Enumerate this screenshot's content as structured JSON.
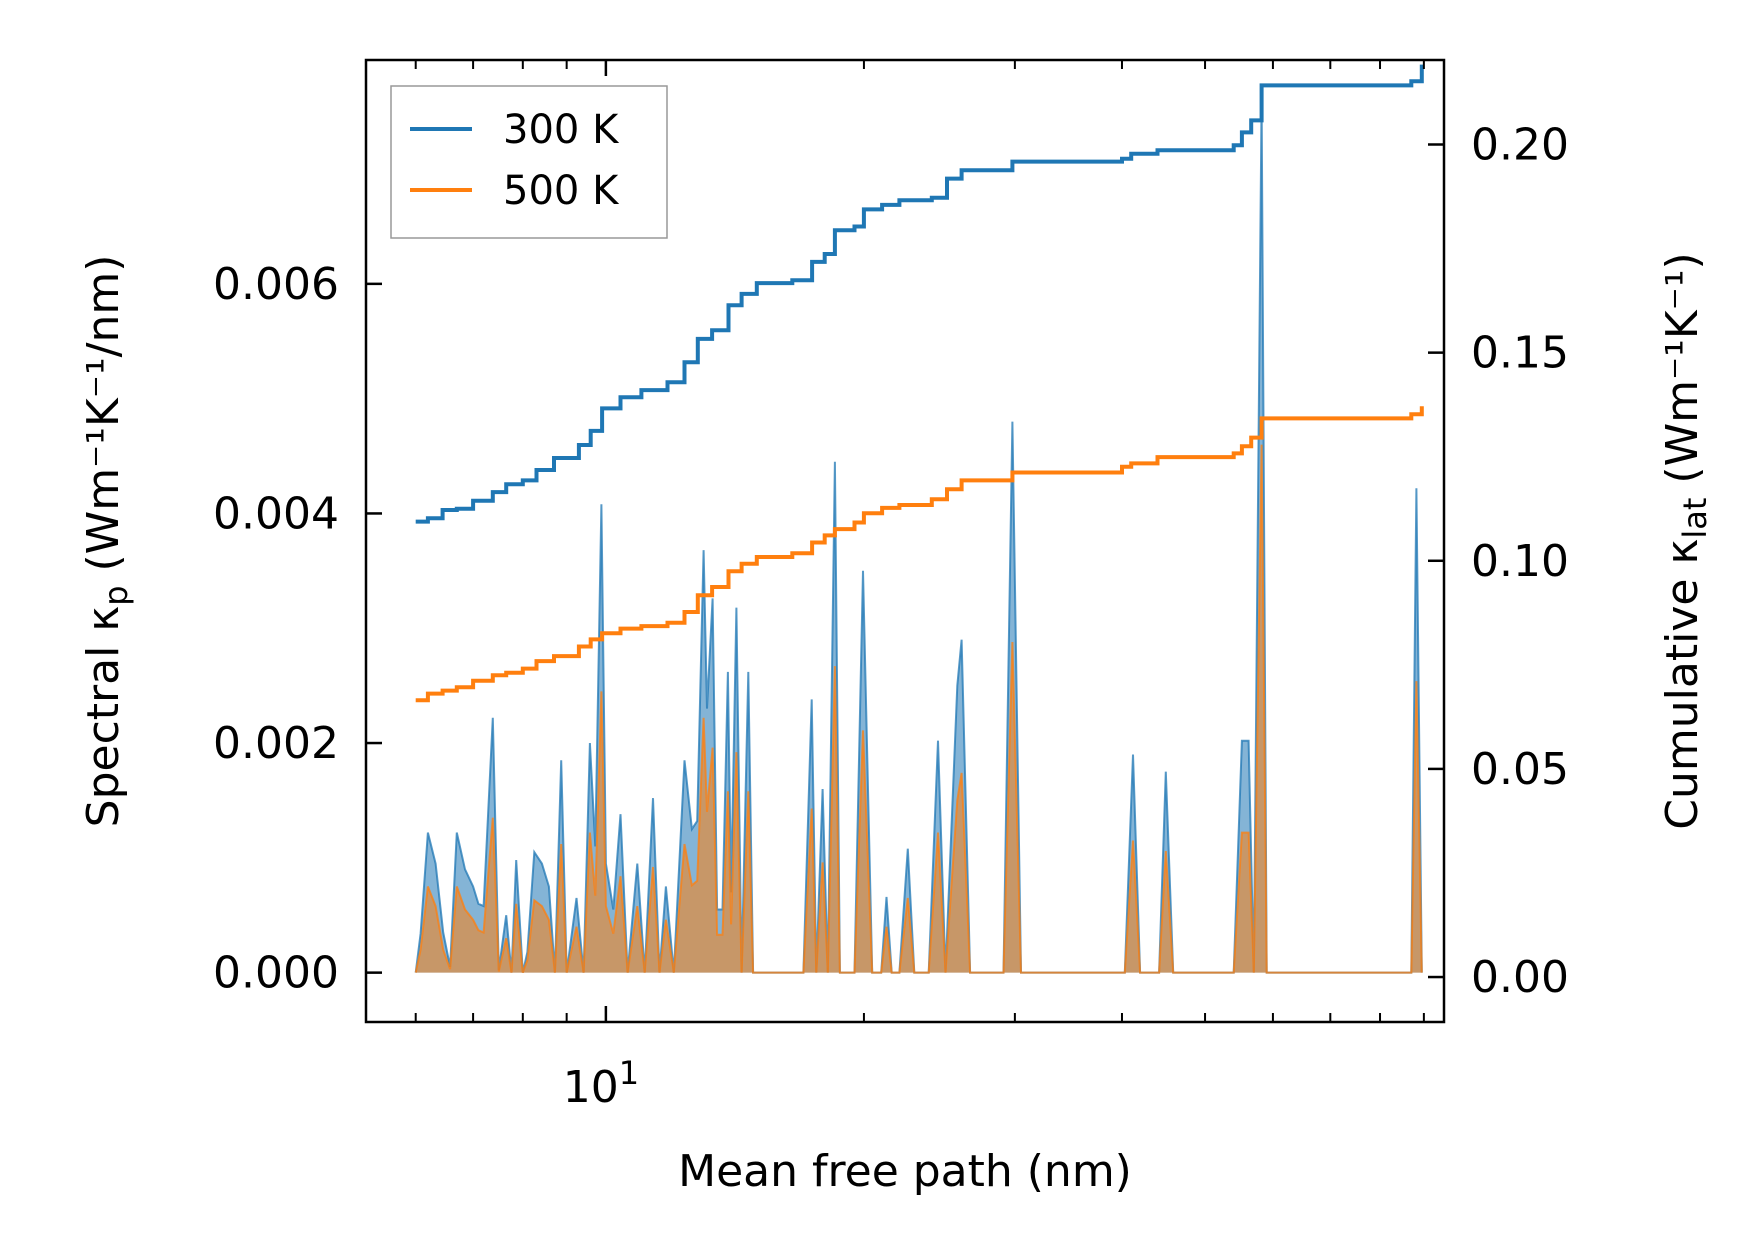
{
  "chart_data": {
    "type": "line",
    "xscale": "log",
    "xlabel": "Mean free path (nm)",
    "xlim": [
      5.25,
      95
    ],
    "x_major_ticks": [
      10
    ],
    "x_major_tick_labels": [
      "10",
      "1"
    ],
    "x_minor_ticks": [
      6,
      7,
      8,
      9,
      20,
      30,
      40,
      50,
      60,
      70,
      80,
      90
    ],
    "ylabel_left": {
      "prefix": "Spectral κ",
      "sub": "p",
      "suffix": " (Wm⁻¹K⁻¹/nm)"
    },
    "ylabel_right": {
      "prefix": "Cumulative κ",
      "sub": "lat",
      "suffix": " (Wm⁻¹K⁻¹)"
    },
    "ylim_left": [
      -0.00043,
      0.00795
    ],
    "ylim_right": [
      -0.0108,
      0.2203
    ],
    "yticks_left": [
      0.0,
      0.002,
      0.004,
      0.006
    ],
    "yticks_left_labels": [
      "0.000",
      "0.002",
      "0.004",
      "0.006"
    ],
    "yticks_right": [
      0.0,
      0.05,
      0.1,
      0.15,
      0.2
    ],
    "yticks_right_labels": [
      "0.00",
      "0.05",
      "0.10",
      "0.15",
      "0.20"
    ],
    "legend": {
      "position": "top-left",
      "entries": [
        "300 K",
        "500 K"
      ]
    },
    "colors": {
      "s300": "#1f77b4",
      "s500": "#ff7f0e",
      "fill300": "#1f77b4",
      "fill500": "#ff7f0e",
      "axis": "#000000"
    },
    "spectral": {
      "s300": [
        [
          6.0,
          0.0
        ],
        [
          6.08,
          0.00034
        ],
        [
          6.2,
          0.00122
        ],
        [
          6.33,
          0.00095
        ],
        [
          6.46,
          0.00035
        ],
        [
          6.58,
          5e-05
        ],
        [
          6.7,
          0.00122
        ],
        [
          6.85,
          0.0009
        ],
        [
          7.0,
          0.00075
        ],
        [
          7.1,
          0.0006
        ],
        [
          7.2,
          0.00058
        ],
        [
          7.38,
          0.00222
        ],
        [
          7.5,
          2e-05
        ],
        [
          7.65,
          0.0005
        ],
        [
          7.76,
          0.0
        ],
        [
          7.86,
          0.00098
        ],
        [
          8.0,
          0.0
        ],
        [
          8.1,
          0.00018
        ],
        [
          8.25,
          0.00105
        ],
        [
          8.42,
          0.00095
        ],
        [
          8.58,
          0.00075
        ],
        [
          8.72,
          0.0
        ],
        [
          8.87,
          0.00185
        ],
        [
          9.0,
          0.0
        ],
        [
          9.24,
          0.00065
        ],
        [
          9.42,
          0.0
        ],
        [
          9.58,
          0.002
        ],
        [
          9.72,
          0.0011
        ],
        [
          9.88,
          0.00408
        ],
        [
          10.0,
          0.00095
        ],
        [
          10.2,
          0.00055
        ],
        [
          10.4,
          0.00138
        ],
        [
          10.6,
          0.0
        ],
        [
          10.88,
          0.00095
        ],
        [
          11.1,
          0.0
        ],
        [
          11.35,
          0.00152
        ],
        [
          11.55,
          0.0
        ],
        [
          11.75,
          0.00075
        ],
        [
          12.0,
          0.0
        ],
        [
          12.35,
          0.00185
        ],
        [
          12.6,
          0.00125
        ],
        [
          12.78,
          0.00132
        ],
        [
          13.0,
          0.00368
        ],
        [
          13.12,
          0.0023
        ],
        [
          13.32,
          0.00326
        ],
        [
          13.48,
          0.00055
        ],
        [
          13.68,
          0.00055
        ],
        [
          13.88,
          0.00262
        ],
        [
          14.0,
          0.0007
        ],
        [
          14.2,
          0.00318
        ],
        [
          14.4,
          0.0
        ],
        [
          14.66,
          0.00262
        ],
        [
          14.85,
          0.0
        ],
        [
          15.4,
          0.0
        ],
        [
          16.66,
          0.0
        ],
        [
          17.0,
          0.0
        ],
        [
          17.38,
          0.00238
        ],
        [
          17.6,
          0.0
        ],
        [
          17.9,
          0.0016
        ],
        [
          18.15,
          0.0
        ],
        [
          18.5,
          0.00445
        ],
        [
          18.75,
          0.0
        ],
        [
          19.5,
          0.0
        ],
        [
          19.95,
          0.0035
        ],
        [
          20.45,
          0.0
        ],
        [
          20.95,
          0.0
        ],
        [
          21.25,
          0.00066
        ],
        [
          21.55,
          0.0
        ],
        [
          22.0,
          0.0
        ],
        [
          22.5,
          0.00108
        ],
        [
          22.9,
          0.0
        ],
        [
          23.8,
          0.0
        ],
        [
          24.4,
          0.00202
        ],
        [
          24.9,
          0.0
        ],
        [
          25.7,
          0.0025
        ],
        [
          26.0,
          0.0029
        ],
        [
          26.6,
          0.0
        ],
        [
          29.1,
          0.0
        ],
        [
          29.8,
          0.0048
        ],
        [
          30.5,
          0.0
        ],
        [
          40.3,
          0.0
        ],
        [
          41.2,
          0.0019
        ],
        [
          42.0,
          0.0
        ],
        [
          44.2,
          0.0
        ],
        [
          45.0,
          0.00175
        ],
        [
          45.9,
          0.0
        ],
        [
          54.0,
          0.0
        ],
        [
          55.2,
          0.00202
        ],
        [
          56.2,
          0.00202
        ],
        [
          57.0,
          0.0
        ],
        [
          58.2,
          0.00762
        ],
        [
          59.0,
          0.0
        ],
        [
          61.0,
          0.0
        ],
        [
          87.0,
          0.0
        ],
        [
          88.2,
          0.00422
        ],
        [
          89.5,
          0.0
        ]
      ],
      "s500": [
        [
          6.0,
          0.0
        ],
        [
          6.08,
          0.0002
        ],
        [
          6.2,
          0.00075
        ],
        [
          6.33,
          0.00058
        ],
        [
          6.46,
          0.0002
        ],
        [
          6.58,
          3e-05
        ],
        [
          6.7,
          0.00075
        ],
        [
          6.85,
          0.00055
        ],
        [
          7.0,
          0.00046
        ],
        [
          7.1,
          0.00037
        ],
        [
          7.2,
          0.00035
        ],
        [
          7.38,
          0.00135
        ],
        [
          7.5,
          1e-05
        ],
        [
          7.65,
          0.0003
        ],
        [
          7.76,
          0.0
        ],
        [
          7.86,
          0.0006
        ],
        [
          8.0,
          0.0
        ],
        [
          8.1,
          0.00011
        ],
        [
          8.25,
          0.00063
        ],
        [
          8.42,
          0.00058
        ],
        [
          8.58,
          0.00046
        ],
        [
          8.72,
          0.0
        ],
        [
          8.87,
          0.00112
        ],
        [
          9.0,
          0.0
        ],
        [
          9.24,
          0.0004
        ],
        [
          9.42,
          0.0
        ],
        [
          9.58,
          0.00122
        ],
        [
          9.72,
          0.00067
        ],
        [
          9.88,
          0.00245
        ],
        [
          10.0,
          0.00058
        ],
        [
          10.2,
          0.00034
        ],
        [
          10.4,
          0.00084
        ],
        [
          10.6,
          0.0
        ],
        [
          10.88,
          0.00058
        ],
        [
          11.1,
          0.0
        ],
        [
          11.35,
          0.00092
        ],
        [
          11.55,
          0.0
        ],
        [
          11.75,
          0.00046
        ],
        [
          12.0,
          0.0
        ],
        [
          12.35,
          0.00112
        ],
        [
          12.6,
          0.00076
        ],
        [
          12.78,
          0.0008
        ],
        [
          13.0,
          0.00222
        ],
        [
          13.12,
          0.0014
        ],
        [
          13.32,
          0.00196
        ],
        [
          13.48,
          0.00033
        ],
        [
          13.68,
          0.00033
        ],
        [
          13.88,
          0.00158
        ],
        [
          14.0,
          0.00042
        ],
        [
          14.2,
          0.00192
        ],
        [
          14.4,
          0.0
        ],
        [
          14.66,
          0.00158
        ],
        [
          14.85,
          0.0
        ],
        [
          15.4,
          0.0
        ],
        [
          16.66,
          0.0
        ],
        [
          17.0,
          0.0
        ],
        [
          17.38,
          0.00143
        ],
        [
          17.6,
          0.0
        ],
        [
          17.9,
          0.00096
        ],
        [
          18.15,
          0.0
        ],
        [
          18.5,
          0.00267
        ],
        [
          18.75,
          0.0
        ],
        [
          19.5,
          0.0
        ],
        [
          19.95,
          0.00211
        ],
        [
          20.45,
          0.0
        ],
        [
          20.95,
          0.0
        ],
        [
          21.25,
          0.0004
        ],
        [
          21.55,
          0.0
        ],
        [
          22.0,
          0.0
        ],
        [
          22.5,
          0.00065
        ],
        [
          22.9,
          0.0
        ],
        [
          23.8,
          0.0
        ],
        [
          24.4,
          0.00122
        ],
        [
          24.9,
          0.0
        ],
        [
          25.7,
          0.0015
        ],
        [
          26.0,
          0.00174
        ],
        [
          26.6,
          0.0
        ],
        [
          29.1,
          0.0
        ],
        [
          29.8,
          0.00288
        ],
        [
          30.5,
          0.0
        ],
        [
          40.3,
          0.0
        ],
        [
          41.2,
          0.00115
        ],
        [
          42.0,
          0.0
        ],
        [
          44.2,
          0.0
        ],
        [
          45.0,
          0.00106
        ],
        [
          45.9,
          0.0
        ],
        [
          54.0,
          0.0
        ],
        [
          55.2,
          0.00122
        ],
        [
          56.2,
          0.00122
        ],
        [
          57.0,
          0.0
        ],
        [
          58.2,
          0.0046
        ],
        [
          59.0,
          0.0
        ],
        [
          61.0,
          0.0
        ],
        [
          87.0,
          0.0
        ],
        [
          88.2,
          0.00254
        ],
        [
          89.5,
          0.0
        ]
      ]
    },
    "cumulative": {
      "s300": [
        [
          6.0,
          0.1094
        ],
        [
          6.2,
          0.1102
        ],
        [
          6.45,
          0.1122
        ],
        [
          6.7,
          0.1125
        ],
        [
          7.0,
          0.1144
        ],
        [
          7.38,
          0.1165
        ],
        [
          7.65,
          0.1184
        ],
        [
          8.0,
          0.1193
        ],
        [
          8.3,
          0.1218
        ],
        [
          8.7,
          0.1247
        ],
        [
          9.3,
          0.1278
        ],
        [
          9.6,
          0.1312
        ],
        [
          9.9,
          0.1366
        ],
        [
          10.4,
          0.1393
        ],
        [
          11.0,
          0.141
        ],
        [
          11.8,
          0.1429
        ],
        [
          12.35,
          0.1477
        ],
        [
          12.8,
          0.1533
        ],
        [
          13.3,
          0.1554
        ],
        [
          13.9,
          0.1614
        ],
        [
          14.4,
          0.1641
        ],
        [
          15.0,
          0.1667
        ],
        [
          16.5,
          0.1674
        ],
        [
          17.4,
          0.1718
        ],
        [
          18.0,
          0.1737
        ],
        [
          18.5,
          0.1794
        ],
        [
          19.5,
          0.1803
        ],
        [
          20.0,
          0.1844
        ],
        [
          21.0,
          0.1855
        ],
        [
          22.0,
          0.1866
        ],
        [
          24.0,
          0.1872
        ],
        [
          25.0,
          0.1918
        ],
        [
          26.0,
          0.1938
        ],
        [
          29.8,
          0.1959
        ],
        [
          40.0,
          0.1966
        ],
        [
          41.0,
          0.1978
        ],
        [
          44.0,
          0.1986
        ],
        [
          54.0,
          0.1998
        ],
        [
          55.2,
          0.2029
        ],
        [
          56.6,
          0.2058
        ],
        [
          58.2,
          0.2142
        ],
        [
          87.0,
          0.2152
        ],
        [
          89.5,
          0.2192
        ]
      ],
      "s500": [
        [
          6.0,
          0.0665
        ],
        [
          6.2,
          0.0681
        ],
        [
          6.45,
          0.0688
        ],
        [
          6.7,
          0.0696
        ],
        [
          7.0,
          0.0712
        ],
        [
          7.38,
          0.0725
        ],
        [
          7.65,
          0.0731
        ],
        [
          8.0,
          0.0741
        ],
        [
          8.3,
          0.0759
        ],
        [
          8.7,
          0.0771
        ],
        [
          9.3,
          0.0794
        ],
        [
          9.6,
          0.0811
        ],
        [
          9.9,
          0.0826
        ],
        [
          10.4,
          0.0837
        ],
        [
          11.0,
          0.0843
        ],
        [
          11.8,
          0.0851
        ],
        [
          12.35,
          0.0877
        ],
        [
          12.8,
          0.0917
        ],
        [
          13.3,
          0.0937
        ],
        [
          13.9,
          0.0975
        ],
        [
          14.4,
          0.0993
        ],
        [
          15.0,
          0.1009
        ],
        [
          16.5,
          0.1018
        ],
        [
          17.4,
          0.1044
        ],
        [
          18.0,
          0.1061
        ],
        [
          18.5,
          0.1076
        ],
        [
          19.5,
          0.1092
        ],
        [
          20.0,
          0.1114
        ],
        [
          21.0,
          0.1127
        ],
        [
          22.0,
          0.1134
        ],
        [
          24.0,
          0.1148
        ],
        [
          25.0,
          0.1172
        ],
        [
          26.0,
          0.1193
        ],
        [
          29.8,
          0.1212
        ],
        [
          40.0,
          0.1226
        ],
        [
          41.0,
          0.1234
        ],
        [
          44.0,
          0.1249
        ],
        [
          54.0,
          0.1258
        ],
        [
          55.2,
          0.1275
        ],
        [
          56.6,
          0.1296
        ],
        [
          58.2,
          0.1342
        ],
        [
          87.0,
          0.1352
        ],
        [
          89.5,
          0.1371
        ]
      ]
    }
  }
}
